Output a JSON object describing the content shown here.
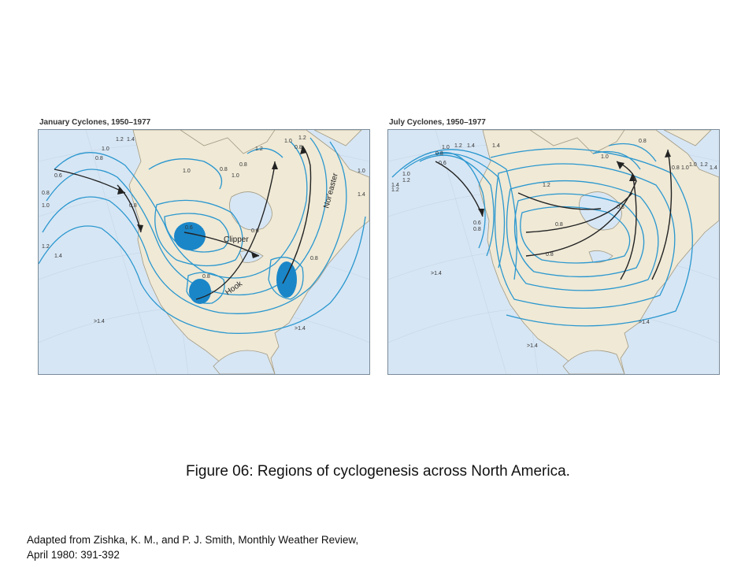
{
  "figure": {
    "caption": "Figure 06: Regions of cyclogenesis across North America.",
    "credit_line1": "Adapted from Zishka, K. M., and P. J. Smith, Monthly Weather Review,",
    "credit_line2": "April 1980: 391-392"
  },
  "colors": {
    "ocean": "#d7e6f4",
    "land": "#efe9d6",
    "contour": "#2a97cf",
    "cyclogenesis_region": "#1a86c8",
    "track": "#222222"
  },
  "maps": [
    {
      "title": "January Cyclones, 1950–1977",
      "contour_labels": {
        "a": "1.2",
        "b": "1.4",
        "c": "1.0",
        "d": "0.8",
        "e": "0.6",
        "f": "0.8",
        "g": "1.0",
        "h": "1.2",
        "i": "1.4",
        "j": "0.8",
        "k": "1.0",
        "l": "0.8",
        "m": "1.2",
        "n": "1.0",
        "o": "1.2",
        "p": "1.4",
        "q": "1.0",
        "r": "0.8",
        "s": "0.6",
        "t": "0.8",
        "u": "0.6",
        "v": "0.8",
        "w": ">1.4",
        "x": ">1.4",
        "y": "1.0",
        "z": "0.8"
      },
      "routes": {
        "clipper": "Clipper",
        "hook": "Hook",
        "noreaster": "Nor'easter"
      }
    },
    {
      "title": "July Cyclones, 1950–1977",
      "contour_labels": {
        "a": "1.0",
        "b": "1.2",
        "c": "1.4",
        "d": "0.8",
        "e": "1.0",
        "f": "1.4",
        "g": "1.2",
        "h": "0.6",
        "i": "0.6",
        "j": "0.8",
        "k": "1.4",
        "l": "1.2",
        "m": "1.0",
        "n": "1.0",
        "o": "0.8",
        "p": "0.6",
        "q": "0.8",
        "r": "0.8",
        "s": "0.8",
        "t": "1.0",
        "u": "1.2",
        "v": "1.4",
        "w": ">1.4",
        "x": ">1.4",
        "y": ">1.4",
        "z": "1.2"
      }
    }
  ]
}
